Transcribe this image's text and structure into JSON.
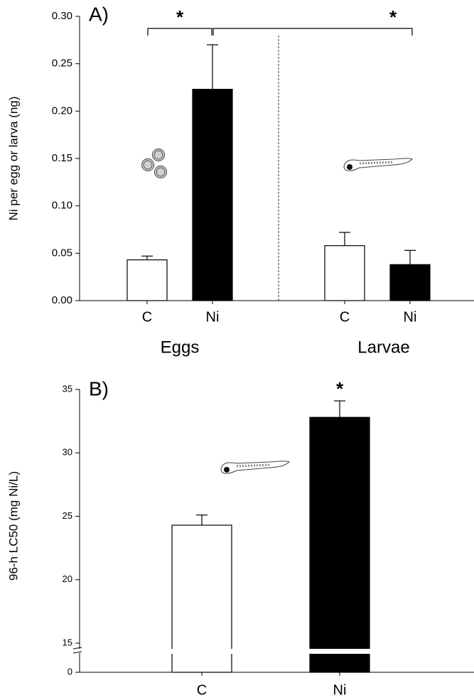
{
  "chart_data": [
    {
      "type": "bar",
      "title": "A)",
      "y_label": "Ni per egg or larva (ng)",
      "categories": [
        "C",
        "Ni",
        "C",
        "Ni"
      ],
      "groups": [
        "Eggs",
        "Larvae"
      ],
      "values": [
        0.043,
        0.223,
        0.058,
        0.038
      ],
      "errors": [
        0.004,
        0.047,
        0.014,
        0.015
      ],
      "colors": [
        "#ffffff",
        "#000000",
        "#ffffff",
        "#000000"
      ],
      "annotations": [
        "*",
        "*"
      ],
      "ylim": [
        0,
        0.3
      ],
      "yticks": [
        {
          "value": 0,
          "label": "0.00"
        },
        {
          "value": 0.05,
          "label": "0.05"
        },
        {
          "value": 0.1,
          "label": "0.10"
        },
        {
          "value": 0.15,
          "label": "0.15"
        },
        {
          "value": 0.2,
          "label": "0.20"
        },
        {
          "value": 0.25,
          "label": "0.25"
        },
        {
          "value": 0.3,
          "label": "0.30"
        }
      ]
    },
    {
      "type": "bar",
      "title": "B)",
      "y_label": "96-h LC50 (mg Ni/L)",
      "categories": [
        "C",
        "Ni"
      ],
      "values": [
        24.3,
        32.8
      ],
      "errors": [
        0.8,
        1.3
      ],
      "colors": [
        "#ffffff",
        "#000000"
      ],
      "annotations": [
        "*"
      ],
      "axis_break": true,
      "ylim": [
        0,
        35
      ],
      "yticks": [
        0,
        15,
        20,
        25,
        30,
        35
      ]
    }
  ]
}
